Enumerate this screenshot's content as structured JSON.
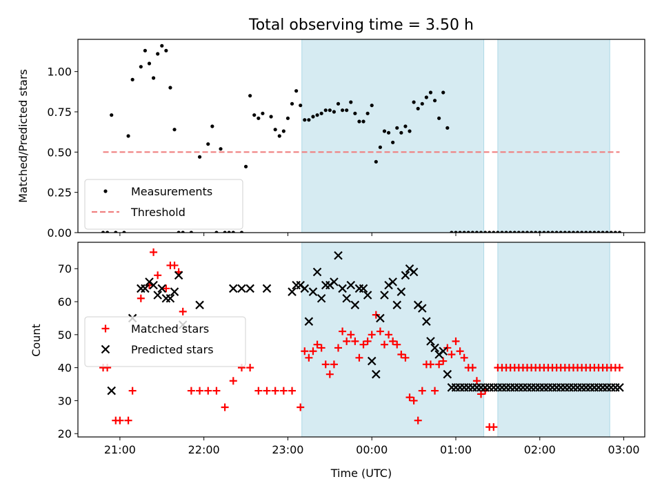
{
  "chart_data": {
    "type": "scatter",
    "title": "Total observing time = 3.50 h",
    "xlabel": "Time (UTC)",
    "xlim": [
      "20:30",
      "03:15"
    ],
    "x_ticks": [
      "21:00",
      "22:00",
      "23:00",
      "00:00",
      "01:00",
      "02:00",
      "03:00"
    ],
    "shaded_intervals": [
      [
        "23:10",
        "01:20"
      ],
      [
        "01:30",
        "02:50"
      ]
    ],
    "shade_color": "#add8e6",
    "panels": [
      {
        "ylabel": "Matched/Predicted stars",
        "ylim": [
          0,
          1.2
        ],
        "y_ticks": [
          "0.00",
          "0.25",
          "0.50",
          "0.75",
          "1.00"
        ],
        "legend": "left, lower half",
        "threshold": {
          "name": "Threshold",
          "value": 0.5,
          "x_range": [
            "20:48",
            "02:57"
          ],
          "color": "#f08080"
        },
        "series": [
          {
            "name": "Measurements",
            "marker": "dot",
            "color": "#000000",
            "x": [
              "20:48",
              "20:51",
              "20:54",
              "20:57",
              "21:03",
              "21:06",
              "21:09",
              "21:15",
              "21:18",
              "21:21",
              "21:24",
              "21:27",
              "21:30",
              "21:33",
              "21:36",
              "21:39",
              "21:42",
              "21:45",
              "21:51",
              "21:57",
              "22:03",
              "22:06",
              "22:09",
              "22:12",
              "22:15",
              "22:18",
              "22:21",
              "22:27",
              "22:30",
              "22:33",
              "22:36",
              "22:39",
              "22:42",
              "22:48",
              "22:51",
              "22:54",
              "22:57",
              "23:00",
              "23:03",
              "23:06",
              "23:09",
              "23:12",
              "23:15",
              "23:18",
              "23:21",
              "23:24",
              "23:27",
              "23:30",
              "23:33",
              "23:36",
              "23:39",
              "23:42",
              "23:45",
              "23:48",
              "23:51",
              "23:54",
              "23:57",
              "00:00",
              "00:03",
              "00:06",
              "00:09",
              "00:12",
              "00:15",
              "00:18",
              "00:21",
              "00:24",
              "00:27",
              "00:30",
              "00:33",
              "00:36",
              "00:39",
              "00:42",
              "00:45",
              "00:48",
              "00:51",
              "00:54",
              "00:57",
              "01:00",
              "01:03",
              "01:06",
              "01:09",
              "01:12",
              "01:15",
              "01:18",
              "01:21",
              "01:24",
              "01:27",
              "01:30",
              "01:33",
              "01:36",
              "01:39",
              "01:42",
              "01:45",
              "01:48",
              "01:51",
              "01:54",
              "01:57",
              "02:00",
              "02:03",
              "02:06",
              "02:09",
              "02:12",
              "02:15",
              "02:18",
              "02:21",
              "02:24",
              "02:27",
              "02:30",
              "02:33",
              "02:36",
              "02:39",
              "02:42",
              "02:45",
              "02:48",
              "02:51",
              "02:54",
              "02:57"
            ],
            "y": [
              0.0,
              0.0,
              0.73,
              0.0,
              0.0,
              0.6,
              0.95,
              1.03,
              1.13,
              1.05,
              0.96,
              1.11,
              1.16,
              1.13,
              0.9,
              0.64,
              0.0,
              0.0,
              0.0,
              0.47,
              0.55,
              0.66,
              0.0,
              0.52,
              0.0,
              0.0,
              0.0,
              0.0,
              0.41,
              0.85,
              0.73,
              0.71,
              0.74,
              0.72,
              0.64,
              0.6,
              0.63,
              0.71,
              0.8,
              0.88,
              0.79,
              0.7,
              0.7,
              0.72,
              0.73,
              0.74,
              0.76,
              0.76,
              0.75,
              0.8,
              0.76,
              0.76,
              0.81,
              0.74,
              0.69,
              0.69,
              0.74,
              0.79,
              0.44,
              0.53,
              0.63,
              0.62,
              0.56,
              0.65,
              0.62,
              0.66,
              0.63,
              0.81,
              0.77,
              0.8,
              0.84,
              0.87,
              0.82,
              0.71,
              0.87,
              0.65,
              0.0,
              0.0,
              0.0,
              0.0,
              0.0,
              0.0,
              0.0,
              0.0,
              0.0,
              0.0,
              0.0,
              0.0,
              0.0,
              0.0,
              0.0,
              0.0,
              0.0,
              0.0,
              0.0,
              0.0,
              0.0,
              0.0,
              0.0,
              0.0,
              0.0,
              0.0,
              0.0,
              0.0,
              0.0,
              0.0,
              0.0,
              0.0,
              0.0,
              0.0,
              0.0,
              0.0,
              0.0,
              0.0,
              0.0,
              0.0,
              0.0
            ]
          }
        ]
      },
      {
        "ylabel": "Count",
        "ylim": [
          19,
          78
        ],
        "y_ticks": [
          "20",
          "30",
          "40",
          "50",
          "60",
          "70"
        ],
        "legend": "left, middle",
        "series": [
          {
            "name": "Matched stars",
            "marker": "plus",
            "color": "#ff0000",
            "x": [
              "20:48",
              "20:51",
              "20:57",
              "21:00",
              "21:06",
              "21:09",
              "21:15",
              "21:21",
              "21:24",
              "21:27",
              "21:33",
              "21:36",
              "21:39",
              "21:42",
              "21:45",
              "21:51",
              "21:57",
              "22:03",
              "22:09",
              "22:15",
              "22:21",
              "22:27",
              "22:33",
              "22:39",
              "22:45",
              "22:51",
              "22:57",
              "23:03",
              "23:09",
              "23:12",
              "23:15",
              "23:18",
              "23:21",
              "23:24",
              "23:27",
              "23:30",
              "23:33",
              "23:36",
              "23:39",
              "23:42",
              "23:45",
              "23:48",
              "23:51",
              "23:54",
              "23:57",
              "00:00",
              "00:03",
              "00:06",
              "00:09",
              "00:12",
              "00:15",
              "00:18",
              "00:21",
              "00:24",
              "00:27",
              "00:30",
              "00:33",
              "00:36",
              "00:39",
              "00:42",
              "00:45",
              "00:48",
              "00:51",
              "00:54",
              "00:57",
              "01:00",
              "01:03",
              "01:06",
              "01:09",
              "01:12",
              "01:15",
              "01:18",
              "01:21",
              "01:24",
              "01:27",
              "01:30",
              "01:33",
              "01:36",
              "01:39",
              "01:42",
              "01:45",
              "01:48",
              "01:51",
              "01:54",
              "01:57",
              "02:00",
              "02:03",
              "02:06",
              "02:09",
              "02:12",
              "02:15",
              "02:18",
              "02:21",
              "02:24",
              "02:27",
              "02:30",
              "02:33",
              "02:36",
              "02:39",
              "02:42",
              "02:45",
              "02:48",
              "02:51",
              "02:54",
              "02:57"
            ],
            "y": [
              40,
              40,
              24,
              24,
              24,
              33,
              61,
              65,
              75,
              68,
              64,
              71,
              71,
              69,
              57,
              33,
              33,
              33,
              33,
              28,
              36,
              40,
              40,
              33,
              33,
              33,
              33,
              33,
              28,
              45,
              43,
              45,
              47,
              46,
              41,
              38,
              41,
              46,
              51,
              48,
              50,
              48,
              43,
              47,
              48,
              50,
              56,
              51,
              47,
              50,
              48,
              47,
              44,
              43,
              31,
              30,
              24,
              33,
              41,
              41,
              33,
              41,
              42,
              46,
              44,
              48,
              45,
              43,
              40,
              40,
              36,
              32,
              33,
              22,
              22,
              40,
              40,
              40,
              40,
              40,
              40,
              40,
              40,
              40,
              40,
              40,
              40,
              40,
              40,
              40,
              40,
              40,
              40,
              40,
              40,
              40,
              40,
              40,
              40,
              40,
              40,
              40,
              40,
              40,
              40
            ]
          },
          {
            "name": "Predicted stars",
            "marker": "x",
            "color": "#000000",
            "x": [
              "20:54",
              "21:09",
              "21:15",
              "21:18",
              "21:21",
              "21:24",
              "21:27",
              "21:30",
              "21:33",
              "21:36",
              "21:39",
              "21:42",
              "21:45",
              "21:57",
              "22:21",
              "22:27",
              "22:33",
              "22:45",
              "23:03",
              "23:06",
              "23:09",
              "23:12",
              "23:15",
              "23:18",
              "23:21",
              "23:24",
              "23:27",
              "23:30",
              "23:33",
              "23:36",
              "23:39",
              "23:42",
              "23:45",
              "23:48",
              "23:51",
              "23:54",
              "23:57",
              "00:00",
              "00:03",
              "00:06",
              "00:09",
              "00:12",
              "00:15",
              "00:18",
              "00:21",
              "00:24",
              "00:27",
              "00:30",
              "00:33",
              "00:36",
              "00:39",
              "00:42",
              "00:45",
              "00:48",
              "00:51",
              "00:54",
              "00:57",
              "01:00",
              "01:03",
              "01:06",
              "01:09",
              "01:12",
              "01:15",
              "01:18",
              "01:21",
              "01:24",
              "01:27",
              "01:30",
              "01:33",
              "01:36",
              "01:39",
              "01:42",
              "01:45",
              "01:48",
              "01:51",
              "01:54",
              "01:57",
              "02:00",
              "02:03",
              "02:06",
              "02:09",
              "02:12",
              "02:15",
              "02:18",
              "02:21",
              "02:24",
              "02:27",
              "02:30",
              "02:33",
              "02:36",
              "02:39",
              "02:42",
              "02:45",
              "02:48",
              "02:51",
              "02:54",
              "02:57"
            ],
            "y": [
              33,
              55,
              64,
              64,
              66,
              65,
              62,
              64,
              61,
              61,
              63,
              68,
              53,
              59,
              64,
              64,
              64,
              64,
              63,
              65,
              65,
              64,
              54,
              63,
              69,
              61,
              65,
              65,
              66,
              74,
              64,
              61,
              65,
              59,
              64,
              64,
              62,
              42,
              38,
              55,
              62,
              65,
              66,
              59,
              63,
              68,
              70,
              69,
              59,
              58,
              54,
              48,
              46,
              44,
              45,
              38,
              34,
              34,
              34,
              34,
              34,
              34,
              34,
              34,
              34,
              34,
              34,
              34,
              34,
              34,
              34,
              34,
              34,
              34,
              34,
              34,
              34,
              34,
              34,
              34,
              34,
              34,
              34,
              34,
              34,
              34,
              34,
              34,
              34,
              34,
              34,
              34,
              34,
              34,
              34,
              34,
              34
            ]
          }
        ]
      }
    ]
  }
}
